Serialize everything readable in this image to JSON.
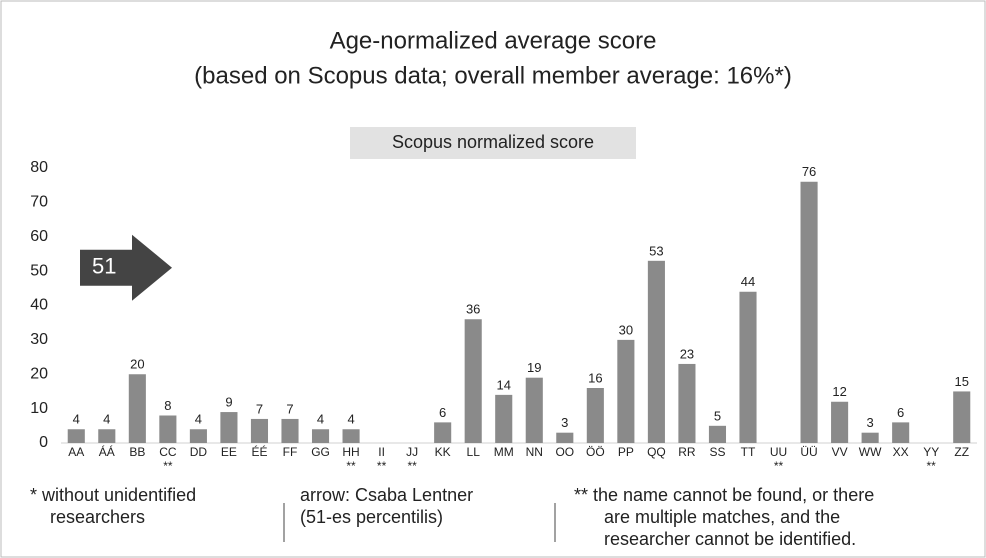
{
  "chart_data": {
    "type": "bar",
    "title": [
      "Age-normalized average score",
      "(based on Scopus data; overall member average: 16%*)"
    ],
    "legend_label": "Scopus normalized score",
    "color": "#8a8a8a",
    "categories": [
      "AA",
      "ÁÁ",
      "BB",
      "CC",
      "DD",
      "EE",
      "ÉÉ",
      "FF",
      "GG",
      "HH",
      "II",
      "JJ",
      "KK",
      "LL",
      "MM",
      "NN",
      "OO",
      "ÖÖ",
      "PP",
      "QQ",
      "RR",
      "SS",
      "TT",
      "UU",
      "ÜÜ",
      "VV",
      "WW",
      "XX",
      "YY",
      "ZZ"
    ],
    "values": [
      4,
      4,
      20,
      8,
      4,
      9,
      7,
      7,
      4,
      4,
      null,
      null,
      6,
      36,
      14,
      19,
      3,
      16,
      30,
      53,
      23,
      5,
      44,
      null,
      76,
      12,
      3,
      6,
      null,
      15
    ],
    "markers": [
      null,
      null,
      null,
      "**",
      null,
      null,
      null,
      null,
      null,
      "**",
      "**",
      "**",
      null,
      null,
      null,
      null,
      null,
      null,
      null,
      null,
      null,
      null,
      null,
      "**",
      null,
      null,
      null,
      null,
      "**",
      null
    ],
    "ylim": [
      0,
      80
    ],
    "yticks": [
      0,
      10,
      20,
      30,
      40,
      50,
      60,
      70,
      80
    ],
    "arrow": {
      "label": "51",
      "value": 51
    },
    "footnotes": [
      [
        "*  without unidentified",
        "researchers"
      ],
      [
        "arrow: Csaba Lentner",
        "(51-es percentilis)"
      ],
      [
        "**  the name cannot be found, or there",
        "are multiple matches, and the",
        "researcher cannot be identified."
      ]
    ]
  }
}
